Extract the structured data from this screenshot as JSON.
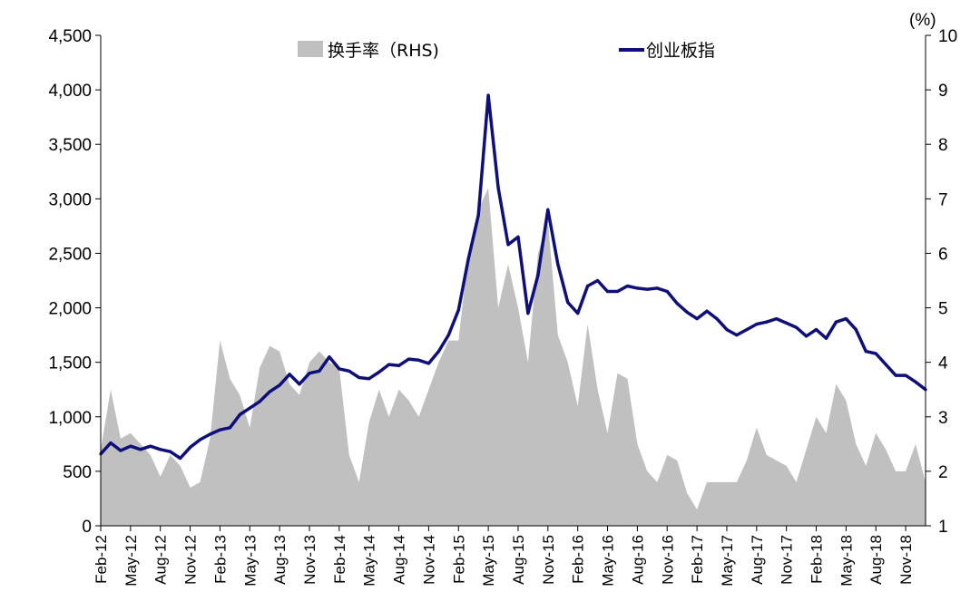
{
  "chart_data": {
    "type": "line",
    "title": "",
    "legend": {
      "placement": "top-center",
      "entries": [
        {
          "label": "换手率（RHS)",
          "kind": "area",
          "color": "#c0c0c0"
        },
        {
          "label": "创业板指",
          "kind": "line",
          "color": "#0f0f7a"
        }
      ]
    },
    "y_left": {
      "ylim": [
        0,
        4500
      ],
      "ticks": [
        0,
        500,
        1000,
        1500,
        2000,
        2500,
        3000,
        3500,
        4000,
        4500
      ],
      "tick_labels": [
        "0",
        "500",
        "1,000",
        "1,500",
        "2,000",
        "2,500",
        "3,000",
        "3,500",
        "4,000",
        "4,500"
      ]
    },
    "y_right": {
      "unit_label": "(%)",
      "ylim": [
        1,
        10
      ],
      "ticks": [
        1,
        2,
        3,
        4,
        5,
        6,
        7,
        8,
        9,
        10
      ],
      "tick_labels": [
        "1",
        "2",
        "3",
        "4",
        "5",
        "6",
        "7",
        "8",
        "9",
        "10"
      ]
    },
    "x_tick_labels": [
      "Feb-12",
      "May-12",
      "Aug-12",
      "Nov-12",
      "Feb-13",
      "May-13",
      "Aug-13",
      "Nov-13",
      "Feb-14",
      "May-14",
      "Aug-14",
      "Nov-14",
      "Feb-15",
      "May-15",
      "Aug-15",
      "Nov-15",
      "Feb-16",
      "May-16",
      "Aug-16",
      "Nov-16",
      "Feb-17",
      "May-17",
      "Aug-17",
      "Nov-17",
      "Feb-18",
      "May-18",
      "Aug-18",
      "Nov-18"
    ],
    "x": [
      "2012-02",
      "2012-03",
      "2012-04",
      "2012-05",
      "2012-06",
      "2012-07",
      "2012-08",
      "2012-09",
      "2012-10",
      "2012-11",
      "2012-12",
      "2013-01",
      "2013-02",
      "2013-03",
      "2013-04",
      "2013-05",
      "2013-06",
      "2013-07",
      "2013-08",
      "2013-09",
      "2013-10",
      "2013-11",
      "2013-12",
      "2014-01",
      "2014-02",
      "2014-03",
      "2014-04",
      "2014-05",
      "2014-06",
      "2014-07",
      "2014-08",
      "2014-09",
      "2014-10",
      "2014-11",
      "2014-12",
      "2015-01",
      "2015-02",
      "2015-03",
      "2015-04",
      "2015-05",
      "2015-06",
      "2015-07",
      "2015-08",
      "2015-09",
      "2015-10",
      "2015-11",
      "2015-12",
      "2016-01",
      "2016-02",
      "2016-03",
      "2016-04",
      "2016-05",
      "2016-06",
      "2016-07",
      "2016-08",
      "2016-09",
      "2016-10",
      "2016-11",
      "2016-12",
      "2017-01",
      "2017-02",
      "2017-03",
      "2017-04",
      "2017-05",
      "2017-06",
      "2017-07",
      "2017-08",
      "2017-09",
      "2017-10",
      "2017-11",
      "2017-12",
      "2018-01",
      "2018-02",
      "2018-03",
      "2018-04",
      "2018-05",
      "2018-06",
      "2018-07",
      "2018-08",
      "2018-09",
      "2018-10",
      "2018-11",
      "2018-12",
      "2019-01"
    ],
    "series": [
      {
        "name": "创业板指",
        "axis": "left",
        "values": [
          660,
          760,
          690,
          730,
          700,
          730,
          700,
          680,
          620,
          720,
          790,
          840,
          880,
          900,
          1020,
          1080,
          1140,
          1230,
          1290,
          1390,
          1300,
          1400,
          1420,
          1550,
          1440,
          1420,
          1360,
          1350,
          1410,
          1480,
          1470,
          1530,
          1520,
          1490,
          1600,
          1750,
          1980,
          2450,
          2850,
          3950,
          3100,
          2580,
          2650,
          1950,
          2300,
          2900,
          2400,
          2050,
          1950,
          2200,
          2250,
          2150,
          2150,
          2200,
          2180,
          2170,
          2180,
          2150,
          2040,
          1960,
          1900,
          1970,
          1900,
          1800,
          1750,
          1800,
          1850,
          1870,
          1900,
          1860,
          1820,
          1740,
          1800,
          1720,
          1870,
          1900,
          1800,
          1600,
          1580,
          1480,
          1380,
          1380,
          1320,
          1250
        ]
      },
      {
        "name": "换手率（RHS)",
        "axis": "right",
        "values": [
          2.4,
          3.5,
          2.6,
          2.7,
          2.5,
          2.3,
          1.9,
          2.3,
          2.1,
          1.7,
          1.8,
          2.6,
          4.4,
          3.7,
          3.4,
          2.8,
          3.9,
          4.3,
          4.2,
          3.6,
          3.4,
          4.0,
          4.2,
          4.0,
          3.9,
          2.3,
          1.8,
          2.9,
          3.5,
          3.0,
          3.5,
          3.3,
          3.0,
          3.5,
          4.0,
          4.4,
          4.4,
          6.0,
          6.8,
          7.2,
          5.0,
          5.8,
          5.0,
          4.0,
          6.0,
          6.6,
          4.5,
          4.0,
          3.2,
          4.7,
          3.5,
          2.7,
          3.8,
          3.7,
          2.5,
          2.0,
          1.8,
          2.3,
          2.2,
          1.6,
          1.3,
          1.8,
          1.8,
          1.8,
          1.8,
          2.2,
          2.8,
          2.3,
          2.2,
          2.1,
          1.8,
          2.4,
          3.0,
          2.7,
          3.6,
          3.3,
          2.5,
          2.1,
          2.7,
          2.4,
          2.0,
          2.0,
          2.5,
          1.8
        ]
      }
    ]
  }
}
